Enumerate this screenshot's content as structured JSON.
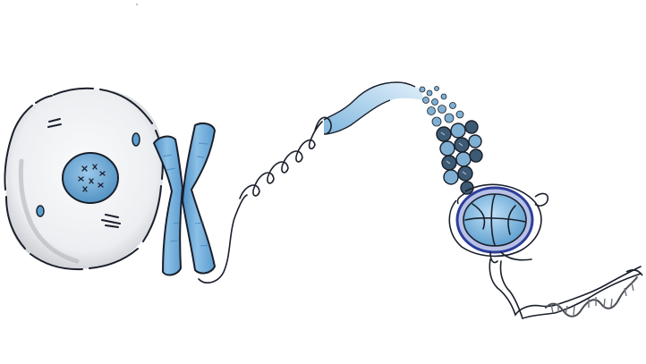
{
  "illustration": {
    "stages": [
      {
        "id": "cell",
        "icon": "cell-icon"
      },
      {
        "id": "chromosome",
        "icon": "chromosome-icon"
      },
      {
        "id": "chromatin-fiber",
        "icon": "coiled-fiber-icon"
      },
      {
        "id": "solenoid",
        "icon": "solenoid-icon"
      },
      {
        "id": "nucleosome",
        "icon": "nucleosome-icon"
      },
      {
        "id": "dna-double-helix",
        "icon": "dna-helix-icon"
      }
    ],
    "colors": {
      "outline": "#1a1f2b",
      "cell_fill": "#eef0f2",
      "cell_shade": "#b9bcc2",
      "nucleus_blue": "#5aa0cf",
      "chromosome_blue": "#6aaad8",
      "chromosome_light": "#a8d0ee",
      "bead_dark": "#3c5a74",
      "bead_blue": "#7fb0d4",
      "histone_blue": "#8cc4ea",
      "histone_ring": "#2d3f9a",
      "helix_gray": "#6c7078"
    }
  }
}
